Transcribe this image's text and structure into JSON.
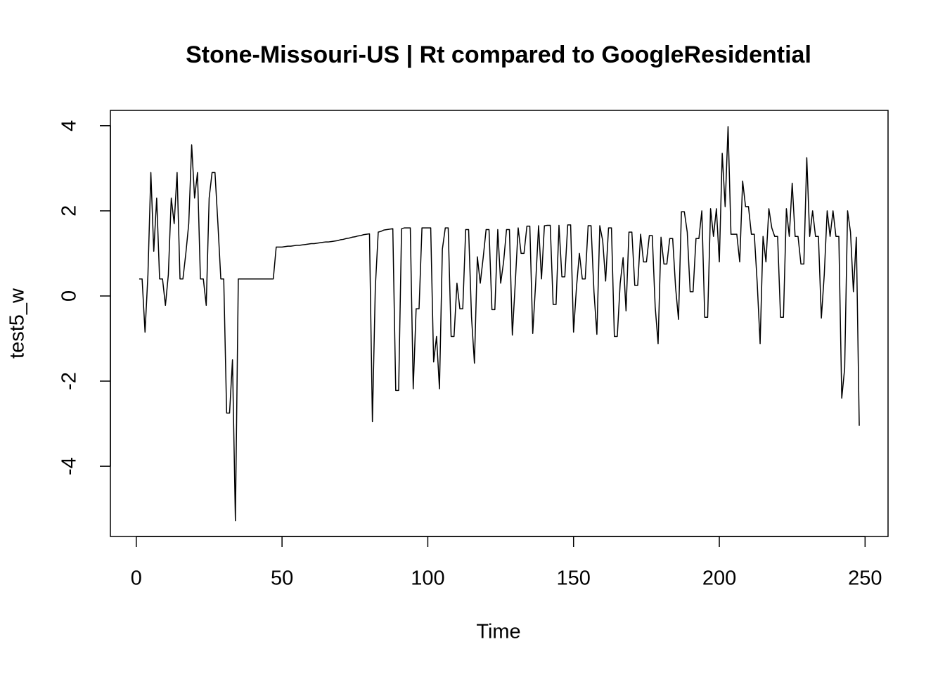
{
  "chart_data": {
    "type": "line",
    "title": "Stone-Missouri-US | Rt compared to GoogleResidential",
    "x_label": "Time",
    "y_label": "test5_w",
    "color": "#000000",
    "xlim": [
      -8.88,
      257.88
    ],
    "ylim": [
      -5.65,
      4.36
    ],
    "xticks": [
      0,
      50,
      100,
      150,
      200,
      250
    ],
    "yticks": [
      -4,
      -2,
      0,
      2,
      4
    ],
    "x": [
      1,
      2,
      3,
      4,
      5,
      6,
      7,
      8,
      9,
      10,
      11,
      12,
      13,
      14,
      15,
      16,
      17,
      18,
      19,
      20,
      21,
      22,
      23,
      24,
      25,
      26,
      27,
      28,
      29,
      30,
      31,
      32,
      33,
      34,
      35,
      36,
      37,
      38,
      39,
      40,
      41,
      42,
      43,
      44,
      45,
      46,
      47,
      48,
      49,
      50,
      51,
      52,
      53,
      54,
      55,
      56,
      57,
      58,
      59,
      60,
      61,
      62,
      63,
      64,
      65,
      66,
      67,
      68,
      69,
      70,
      71,
      72,
      73,
      74,
      75,
      76,
      77,
      78,
      79,
      80,
      81,
      82,
      83,
      84,
      85,
      86,
      87,
      88,
      89,
      90,
      91,
      92,
      93,
      94,
      95,
      96,
      97,
      98,
      99,
      100,
      101,
      102,
      103,
      104,
      105,
      106,
      107,
      108,
      109,
      110,
      111,
      112,
      113,
      114,
      115,
      116,
      117,
      118,
      119,
      120,
      121,
      122,
      123,
      124,
      125,
      126,
      127,
      128,
      129,
      130,
      131,
      132,
      133,
      134,
      135,
      136,
      137,
      138,
      139,
      140,
      141,
      142,
      143,
      144,
      145,
      146,
      147,
      148,
      149,
      150,
      151,
      152,
      153,
      154,
      155,
      156,
      157,
      158,
      159,
      160,
      161,
      162,
      163,
      164,
      165,
      166,
      167,
      168,
      169,
      170,
      171,
      172,
      173,
      174,
      175,
      176,
      177,
      178,
      179,
      180,
      181,
      182,
      183,
      184,
      185,
      186,
      187,
      188,
      189,
      190,
      191,
      192,
      193,
      194,
      195,
      196,
      197,
      198,
      199,
      200,
      201,
      202,
      203,
      204,
      205,
      206,
      207,
      208,
      209,
      210,
      211,
      212,
      213,
      214,
      215,
      216,
      217,
      218,
      219,
      220,
      221,
      222,
      223,
      224,
      225,
      226,
      227,
      228,
      229,
      230,
      231,
      232,
      233,
      234,
      235,
      236,
      237,
      238,
      239,
      240,
      241,
      242,
      243,
      244,
      245,
      246,
      247,
      248
    ],
    "values": [
      0.4,
      0.4,
      -0.85,
      0.5,
      2.9,
      1.05,
      2.3,
      0.4,
      0.4,
      -0.22,
      0.5,
      2.3,
      1.7,
      2.9,
      0.4,
      0.4,
      1.0,
      1.7,
      3.55,
      2.3,
      2.9,
      0.4,
      0.4,
      -0.22,
      2.3,
      2.9,
      2.9,
      1.7,
      0.4,
      0.4,
      -2.75,
      -2.75,
      -1.5,
      -5.28,
      0.4,
      0.4,
      0.4,
      0.4,
      0.4,
      0.4,
      0.4,
      0.4,
      0.4,
      0.4,
      0.4,
      0.4,
      0.4,
      1.15,
      1.15,
      1.15,
      1.16,
      1.17,
      1.17,
      1.18,
      1.19,
      1.19,
      1.2,
      1.21,
      1.22,
      1.23,
      1.23,
      1.24,
      1.25,
      1.26,
      1.27,
      1.27,
      1.28,
      1.29,
      1.3,
      1.32,
      1.33,
      1.35,
      1.36,
      1.38,
      1.39,
      1.41,
      1.42,
      1.44,
      1.45,
      1.46,
      -2.95,
      0.2,
      1.5,
      1.52,
      1.55,
      1.56,
      1.57,
      1.58,
      -2.22,
      -2.22,
      1.58,
      1.6,
      1.6,
      1.6,
      -2.18,
      -0.3,
      -0.3,
      1.6,
      1.6,
      1.6,
      1.6,
      -1.55,
      -0.95,
      -2.18,
      1.1,
      1.6,
      1.6,
      -0.95,
      -0.95,
      0.3,
      -0.3,
      -0.3,
      1.56,
      1.56,
      -0.5,
      -1.58,
      0.92,
      0.3,
      0.9,
      1.56,
      1.56,
      -0.32,
      -0.32,
      1.56,
      0.3,
      0.8,
      1.56,
      1.56,
      -0.92,
      0.3,
      1.6,
      1.0,
      1.0,
      1.64,
      1.64,
      -0.88,
      0.3,
      1.65,
      0.4,
      1.65,
      1.66,
      1.66,
      -0.2,
      -0.2,
      1.66,
      0.45,
      0.45,
      1.67,
      1.67,
      -0.85,
      0.2,
      1.0,
      0.4,
      0.4,
      1.65,
      1.65,
      0.1,
      -0.9,
      1.65,
      1.3,
      0.35,
      1.6,
      1.6,
      -0.95,
      -0.95,
      0.3,
      0.9,
      -0.35,
      1.5,
      1.5,
      0.25,
      0.25,
      1.45,
      0.8,
      0.8,
      1.42,
      1.42,
      -0.25,
      -1.12,
      1.38,
      0.75,
      0.75,
      1.35,
      1.35,
      0.2,
      -0.55,
      1.98,
      1.98,
      1.5,
      0.1,
      0.1,
      1.35,
      1.35,
      2.0,
      -0.5,
      -0.5,
      2.05,
      1.4,
      2.05,
      0.8,
      3.35,
      2.1,
      3.98,
      1.45,
      1.45,
      1.45,
      0.8,
      2.7,
      2.1,
      2.1,
      1.45,
      1.45,
      0.3,
      -1.12,
      1.4,
      0.8,
      2.05,
      1.6,
      1.4,
      1.4,
      -0.5,
      -0.5,
      2.05,
      1.4,
      2.65,
      1.4,
      1.4,
      0.75,
      0.75,
      3.25,
      1.4,
      2.0,
      1.4,
      1.4,
      -0.52,
      0.5,
      2.0,
      1.4,
      2.0,
      1.4,
      1.4,
      -2.4,
      -1.7,
      2.0,
      1.5,
      0.1,
      1.38,
      -3.05
    ]
  }
}
